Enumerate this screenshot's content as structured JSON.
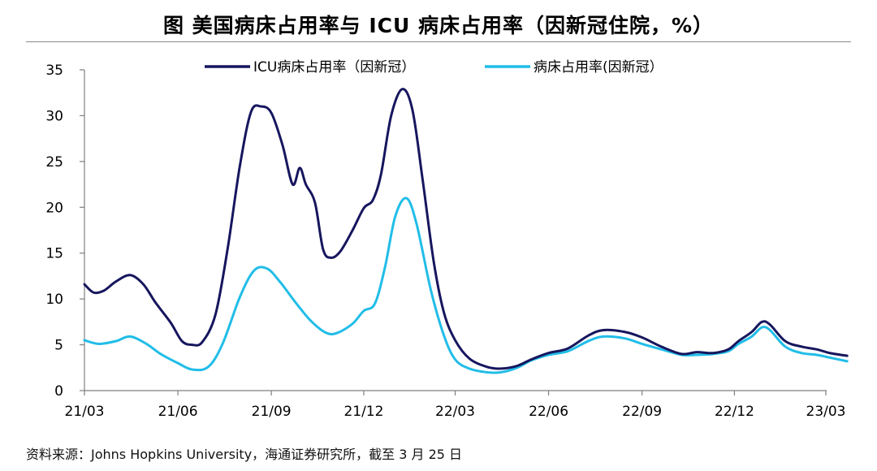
{
  "title": "图  美国病床占用率与 ICU 病床占用率（因新冠住院，%）",
  "source": "资料来源：Johns Hopkins University，海通证券研究所，截至 3 月 25 日",
  "colors": {
    "icu": "#16165e",
    "bed": "#21bde8",
    "axis": "#7f7f7f"
  },
  "chart_data": {
    "type": "line",
    "title": "美国病床占用率与 ICU 病床占用率（因新冠住院，%）",
    "xlabel": "",
    "ylabel": "",
    "ylim": [
      0,
      35
    ],
    "yticks": [
      0,
      5,
      10,
      15,
      20,
      25,
      30,
      35
    ],
    "xlim": [
      "2021-03-01",
      "2023-03-25"
    ],
    "x_ticks": [
      {
        "label": "21/03",
        "date": "2021-03-01"
      },
      {
        "label": "21/06",
        "date": "2021-06-01"
      },
      {
        "label": "21/09",
        "date": "2021-09-01"
      },
      {
        "label": "21/12",
        "date": "2021-12-01"
      },
      {
        "label": "22/03",
        "date": "2022-03-01"
      },
      {
        "label": "22/06",
        "date": "2022-06-01"
      },
      {
        "label": "22/09",
        "date": "2022-09-01"
      },
      {
        "label": "22/12",
        "date": "2022-12-01"
      },
      {
        "label": "23/03",
        "date": "2023-03-01"
      }
    ],
    "legend": {
      "position": "top-center"
    },
    "grid": false,
    "series": [
      {
        "name": "ICU病床占用率（因新冠）",
        "color_key": "icu",
        "points": [
          [
            "2021-03-01",
            11.6
          ],
          [
            "2021-03-10",
            10.7
          ],
          [
            "2021-03-20",
            10.9
          ],
          [
            "2021-04-01",
            11.9
          ],
          [
            "2021-04-15",
            12.6
          ],
          [
            "2021-04-28",
            11.6
          ],
          [
            "2021-05-10",
            9.6
          ],
          [
            "2021-05-25",
            7.4
          ],
          [
            "2021-06-05",
            5.4
          ],
          [
            "2021-06-15",
            5.0
          ],
          [
            "2021-06-25",
            5.3
          ],
          [
            "2021-07-08",
            8.3
          ],
          [
            "2021-07-20",
            15.5
          ],
          [
            "2021-08-01",
            24.5
          ],
          [
            "2021-08-12",
            30.4
          ],
          [
            "2021-08-22",
            31.0
          ],
          [
            "2021-09-01",
            30.3
          ],
          [
            "2021-09-12",
            26.8
          ],
          [
            "2021-09-22",
            22.5
          ],
          [
            "2021-09-29",
            24.3
          ],
          [
            "2021-10-05",
            22.5
          ],
          [
            "2021-10-14",
            20.5
          ],
          [
            "2021-10-22",
            15.4
          ],
          [
            "2021-10-30",
            14.5
          ],
          [
            "2021-11-08",
            15.2
          ],
          [
            "2021-11-20",
            17.5
          ],
          [
            "2021-12-01",
            19.9
          ],
          [
            "2021-12-10",
            20.8
          ],
          [
            "2021-12-18",
            23.6
          ],
          [
            "2021-12-28",
            30.0
          ],
          [
            "2022-01-08",
            32.9
          ],
          [
            "2022-01-18",
            30.6
          ],
          [
            "2022-01-28",
            23.0
          ],
          [
            "2022-02-08",
            14.0
          ],
          [
            "2022-02-18",
            8.5
          ],
          [
            "2022-03-01",
            5.5
          ],
          [
            "2022-03-15",
            3.5
          ],
          [
            "2022-04-01",
            2.6
          ],
          [
            "2022-04-15",
            2.4
          ],
          [
            "2022-05-01",
            2.7
          ],
          [
            "2022-05-15",
            3.4
          ],
          [
            "2022-06-01",
            4.1
          ],
          [
            "2022-06-20",
            4.6
          ],
          [
            "2022-07-10",
            6.0
          ],
          [
            "2022-07-25",
            6.6
          ],
          [
            "2022-08-15",
            6.4
          ],
          [
            "2022-09-01",
            5.8
          ],
          [
            "2022-09-20",
            4.8
          ],
          [
            "2022-10-10",
            4.0
          ],
          [
            "2022-10-25",
            4.2
          ],
          [
            "2022-11-10",
            4.1
          ],
          [
            "2022-11-25",
            4.5
          ],
          [
            "2022-12-05",
            5.4
          ],
          [
            "2022-12-18",
            6.4
          ],
          [
            "2022-12-28",
            7.5
          ],
          [
            "2023-01-05",
            7.2
          ],
          [
            "2023-01-20",
            5.4
          ],
          [
            "2023-02-05",
            4.8
          ],
          [
            "2023-02-20",
            4.5
          ],
          [
            "2023-03-05",
            4.1
          ],
          [
            "2023-03-22",
            3.8
          ]
        ]
      },
      {
        "name": "病床占用率(因新冠）",
        "color_key": "bed",
        "points": [
          [
            "2021-03-01",
            5.5
          ],
          [
            "2021-03-15",
            5.1
          ],
          [
            "2021-04-01",
            5.4
          ],
          [
            "2021-04-15",
            5.9
          ],
          [
            "2021-05-01",
            5.1
          ],
          [
            "2021-05-15",
            4.0
          ],
          [
            "2021-06-01",
            3.0
          ],
          [
            "2021-06-15",
            2.3
          ],
          [
            "2021-07-01",
            2.6
          ],
          [
            "2021-07-15",
            5.1
          ],
          [
            "2021-08-01",
            10.2
          ],
          [
            "2021-08-15",
            13.1
          ],
          [
            "2021-08-28",
            13.3
          ],
          [
            "2021-09-10",
            11.8
          ],
          [
            "2021-09-25",
            9.6
          ],
          [
            "2021-10-10",
            7.6
          ],
          [
            "2021-10-25",
            6.3
          ],
          [
            "2021-11-05",
            6.3
          ],
          [
            "2021-11-20",
            7.3
          ],
          [
            "2021-12-01",
            8.7
          ],
          [
            "2021-12-12",
            9.5
          ],
          [
            "2021-12-22",
            13.5
          ],
          [
            "2022-01-01",
            19.0
          ],
          [
            "2022-01-12",
            21.0
          ],
          [
            "2022-01-22",
            18.2
          ],
          [
            "2022-02-05",
            11.0
          ],
          [
            "2022-02-18",
            6.0
          ],
          [
            "2022-03-01",
            3.4
          ],
          [
            "2022-03-15",
            2.4
          ],
          [
            "2022-04-01",
            2.0
          ],
          [
            "2022-04-15",
            2.0
          ],
          [
            "2022-05-01",
            2.5
          ],
          [
            "2022-05-15",
            3.3
          ],
          [
            "2022-06-01",
            3.9
          ],
          [
            "2022-06-20",
            4.3
          ],
          [
            "2022-07-10",
            5.4
          ],
          [
            "2022-07-25",
            5.9
          ],
          [
            "2022-08-15",
            5.7
          ],
          [
            "2022-09-01",
            5.1
          ],
          [
            "2022-09-20",
            4.5
          ],
          [
            "2022-10-10",
            3.9
          ],
          [
            "2022-10-25",
            3.9
          ],
          [
            "2022-11-10",
            4.0
          ],
          [
            "2022-11-25",
            4.3
          ],
          [
            "2022-12-05",
            5.1
          ],
          [
            "2022-12-18",
            5.9
          ],
          [
            "2022-12-28",
            6.9
          ],
          [
            "2023-01-05",
            6.6
          ],
          [
            "2023-01-20",
            4.8
          ],
          [
            "2023-02-05",
            4.1
          ],
          [
            "2023-02-20",
            3.9
          ],
          [
            "2023-03-05",
            3.6
          ],
          [
            "2023-03-22",
            3.2
          ]
        ]
      }
    ]
  }
}
